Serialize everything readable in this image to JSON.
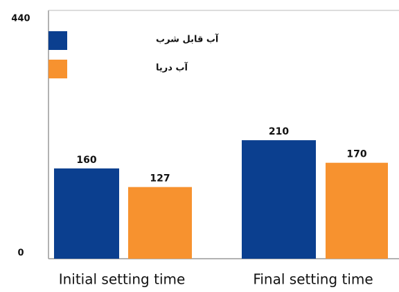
{
  "chart_data": {
    "type": "bar",
    "categories": [
      "Initial setting time",
      "Final setting time"
    ],
    "series": [
      {
        "name": "آب قابل شرب",
        "color": "#0b3f8f",
        "values": [
          160,
          210
        ]
      },
      {
        "name": "آب دریا",
        "color": "#f7922f",
        "values": [
          127,
          170
        ]
      }
    ],
    "ylim": [
      0,
      440
    ],
    "yticks": [
      0,
      440
    ],
    "grid": false,
    "legend": "top-left",
    "data_labels": true
  }
}
